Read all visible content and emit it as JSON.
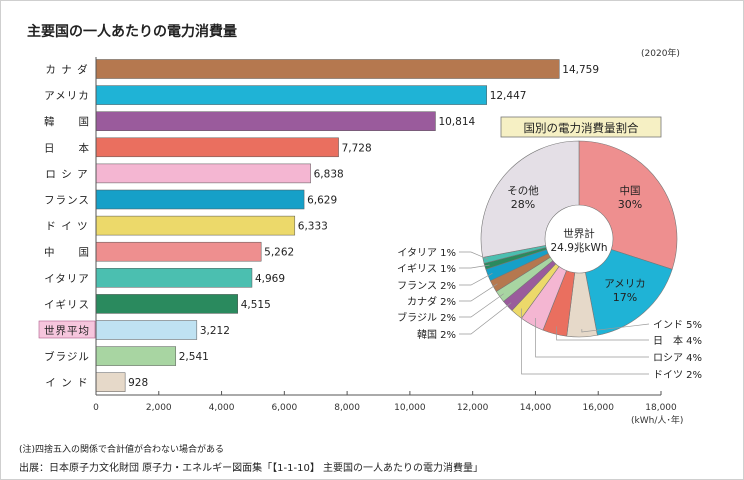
{
  "chart_data": [
    {
      "type": "bar",
      "orientation": "horizontal",
      "title": "主要国の一人あたりの電力消費量",
      "note_year": "(2020年)",
      "xlabel": "(kWh/人･年)",
      "xlim": [
        0,
        18000
      ],
      "xticks": [
        "0",
        "2,000",
        "4,000",
        "6,000",
        "8,000",
        "10,000",
        "12,000",
        "14,000",
        "16,000",
        "18,000"
      ],
      "categories": [
        "カ ナ ダ",
        "アメリカ",
        "韓　　国",
        "日　　本",
        "ロ シ ア",
        "フランス",
        "ド イ ツ",
        "中　　国",
        "イタリア",
        "イギリス",
        "世界平均",
        "ブラジル",
        "イ ン ド"
      ],
      "values": [
        14759,
        12447,
        10814,
        7728,
        6838,
        6629,
        6333,
        5262,
        4969,
        4515,
        3212,
        2541,
        928
      ],
      "value_labels": [
        "14,759",
        "12,447",
        "10,814",
        "7,728",
        "6,838",
        "6,629",
        "6,333",
        "5,262",
        "4,969",
        "4,515",
        "3,212",
        "2,541",
        "928"
      ],
      "colors": [
        "#b5784f",
        "#1fb3d6",
        "#9a5b9c",
        "#ea6f5f",
        "#f4b6d2",
        "#16a0c8",
        "#ecd96a",
        "#ee8f8f",
        "#4bbfb0",
        "#2a8a5e",
        "#bfe2f2",
        "#a8d5a2",
        "#e6d9c9"
      ],
      "highlight": "世界平均",
      "highlight_color": "#f6c6dd"
    },
    {
      "type": "pie",
      "title": "国別の電力消費量割合",
      "center_label": [
        "世界計",
        "24.9兆kWh"
      ],
      "slices": [
        {
          "name": "中国",
          "value": 30,
          "color": "#ee8f8f"
        },
        {
          "name": "アメリカ",
          "value": 17,
          "color": "#1fb3d6"
        },
        {
          "name": "インド",
          "value": 5,
          "color": "#e6d9c9"
        },
        {
          "name": "日　本",
          "value": 4,
          "color": "#ea6f5f"
        },
        {
          "name": "ロシア",
          "value": 4,
          "color": "#f4b6d2"
        },
        {
          "name": "ドイツ",
          "value": 2,
          "color": "#ecd96a"
        },
        {
          "name": "韓国",
          "value": 2,
          "color": "#9a5b9c"
        },
        {
          "name": "ブラジル",
          "value": 2,
          "color": "#a8d5a2"
        },
        {
          "name": "カナダ",
          "value": 2,
          "color": "#b5784f"
        },
        {
          "name": "フランス",
          "value": 2,
          "color": "#16a0c8"
        },
        {
          "name": "イギリス",
          "value": 1,
          "color": "#2a8a5e"
        },
        {
          "name": "イタリア",
          "value": 1,
          "color": "#4bbfb0"
        },
        {
          "name": "その他",
          "value": 28,
          "color": "#e4dfe6"
        }
      ]
    }
  ],
  "footer": {
    "note": "(注)四捨五入の関係で合計値が合わない場合がある",
    "source": "出展：日本原子力文化財団 原子力・エネルギー図面集「【1-1-10】 主要国の一人あたりの電力消費量」"
  }
}
